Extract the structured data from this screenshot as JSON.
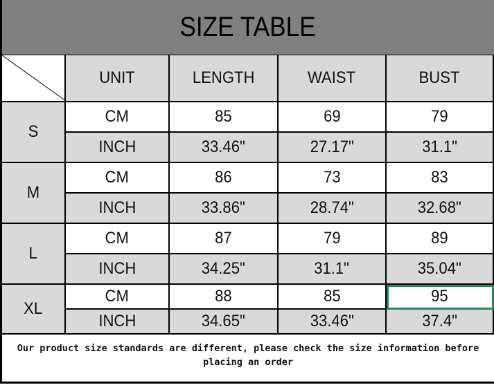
{
  "title": "SIZE TABLE",
  "headers": [
    "UNIT",
    "LENGTH",
    "WAIST",
    "BUST"
  ],
  "rows": [
    {
      "size": "S",
      "cm": {
        "unit": "CM",
        "values": [
          "85",
          "69",
          "79"
        ]
      },
      "inch": {
        "unit": "INCH",
        "values": [
          "33.46\"",
          "27.17\"",
          "31.1\""
        ]
      }
    },
    {
      "size": "M",
      "cm": {
        "unit": "CM",
        "values": [
          "86",
          "73",
          "83"
        ]
      },
      "inch": {
        "unit": "INCH",
        "values": [
          "33.86\"",
          "28.74\"",
          "32.68\""
        ]
      }
    },
    {
      "size": "L",
      "cm": {
        "unit": "CM",
        "values": [
          "87",
          "79",
          "89"
        ]
      },
      "inch": {
        "unit": "INCH",
        "values": [
          "34.25\"",
          "31.1\"",
          "35.04\""
        ]
      }
    },
    {
      "size": "XL",
      "cm": {
        "unit": "CM",
        "values": [
          "88",
          "85",
          "95"
        ]
      },
      "inch": {
        "unit": "INCH",
        "values": [
          "34.65\"",
          "33.46\"",
          "37.4\""
        ]
      }
    }
  ],
  "note": "Our product size standards are different, please check the size information before placing an order",
  "colors": {
    "title_bg": "#808080",
    "cell_gray": "#d9d9d9",
    "selection": "#1e8a5a"
  }
}
